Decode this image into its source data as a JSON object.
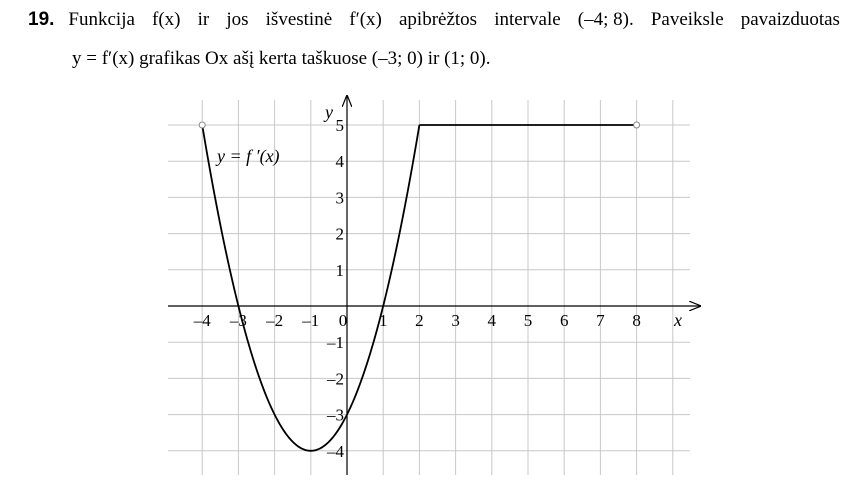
{
  "problem": {
    "number": "19.",
    "line1_words": [
      "Funkcija",
      "f(x)",
      "ir",
      "jos",
      "išvestinė",
      "f′(x)",
      "apibrėžtos",
      "intervale",
      "(–4; 8).",
      "Paveiksle",
      "pavaizduotas"
    ],
    "line2": "y = f′(x) grafikas Ox ašį kerta taškuose (–3; 0) ir (1; 0)."
  },
  "chart_data": {
    "type": "line",
    "title": "",
    "xlabel": "x",
    "ylabel": "y",
    "xlim": [
      -4,
      8
    ],
    "ylim": [
      -4,
      5
    ],
    "grid": true,
    "x_ticks": [
      "–4",
      "–3",
      "–2",
      "–1",
      "0",
      "1",
      "2",
      "3",
      "4",
      "5",
      "6",
      "7",
      "8"
    ],
    "y_ticks": [
      "–4",
      "–3",
      "–2",
      "–1",
      "1",
      "2",
      "3",
      "4",
      "5"
    ],
    "curve_label": "y = f ′(x)",
    "series": [
      {
        "name": "y = f ′(x)",
        "parabola_part": {
          "x_from": -4,
          "x_to": 2,
          "formula": "y = x^2 + 2x - 3",
          "vertex": [
            -1,
            -4
          ]
        },
        "constant_part": {
          "x_from": 2,
          "x_to": 8,
          "y": 5
        },
        "open_endpoints": [
          [
            -4,
            5
          ],
          [
            8,
            5
          ]
        ]
      }
    ]
  }
}
